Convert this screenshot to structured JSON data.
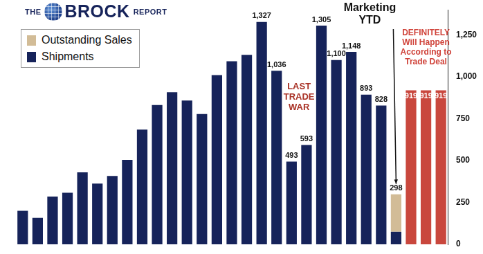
{
  "chart_data": {
    "type": "bar",
    "title": "THE BROCK REPORT",
    "categories": [
      null,
      null,
      null,
      null,
      null,
      null,
      null,
      null,
      null,
      null,
      null,
      null,
      null,
      null,
      null,
      null,
      null,
      null,
      null,
      null,
      null,
      null,
      null,
      null,
      null,
      null,
      null,
      null,
      null
    ],
    "series": [
      {
        "name": "Outstanding Sales",
        "color": "#d2bc97",
        "values": [
          null,
          null,
          null,
          null,
          null,
          null,
          null,
          null,
          null,
          null,
          null,
          null,
          null,
          null,
          null,
          null,
          null,
          null,
          null,
          null,
          null,
          null,
          null,
          null,
          null,
          223,
          null,
          null,
          null
        ],
        "value_labels": [
          null,
          null,
          null,
          null,
          null,
          null,
          null,
          null,
          null,
          null,
          null,
          null,
          null,
          null,
          null,
          null,
          null,
          null,
          null,
          null,
          null,
          null,
          null,
          null,
          null,
          null,
          null,
          null,
          null
        ]
      },
      {
        "name": "Shipments",
        "color": "#16235a",
        "values": [
          200,
          158,
          285,
          308,
          430,
          362,
          408,
          504,
          685,
          831,
          908,
          858,
          777,
          1010,
          1092,
          1131,
          1327,
          1036,
          493,
          593,
          1305,
          1100,
          1148,
          893,
          828,
          75,
          null,
          null,
          null
        ],
        "value_labels": [
          null,
          null,
          null,
          null,
          null,
          null,
          null,
          null,
          null,
          null,
          null,
          null,
          null,
          null,
          null,
          null,
          "1,327",
          "1,036",
          "493",
          "593",
          "1,305",
          "1,100",
          "1,148",
          "893",
          "828",
          null,
          null,
          null,
          null
        ]
      },
      {
        "color": "#c9473d",
        "values": [
          null,
          null,
          null,
          null,
          null,
          null,
          null,
          null,
          null,
          null,
          null,
          null,
          null,
          null,
          null,
          null,
          null,
          null,
          null,
          null,
          null,
          null,
          null,
          null,
          null,
          null,
          919,
          919,
          919
        ]
      }
    ],
    "totals": [
      null,
      null,
      null,
      null,
      null,
      null,
      null,
      null,
      null,
      null,
      null,
      null,
      null,
      null,
      null,
      null,
      null,
      null,
      null,
      null,
      null,
      null,
      null,
      null,
      null,
      298,
      null,
      null,
      null
    ],
    "annotations": [
      {
        "text": "LAST TRADE WAR"
      },
      {
        "text": "Marketing YTD"
      },
      {
        "text": "DEFINITELY Will Happen According to Trade Deal"
      }
    ],
    "ylim": [
      0,
      1400
    ],
    "yticks": [
      0,
      250,
      500,
      750,
      {
        "value": 1000,
        "label": "1,000"
      },
      {
        "value": 1250,
        "label": "1,250"
      }
    ],
    "grid": false,
    "stacked": true,
    "data_labels": true,
    "tick_labels": "y",
    "legend": "upper left"
  }
}
